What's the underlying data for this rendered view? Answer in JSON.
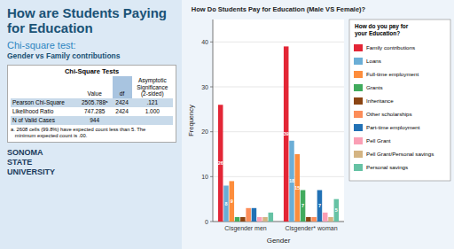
{
  "title": "How are Students Paying for Education",
  "annotations": [
    "Chi-square test:",
    "Gender vs Family contributions",
    "SONOMA\nSTATE\nUNIVERSITY"
  ],
  "chart_data": [
    {
      "type": "bar",
      "title": "How Do Students Pay for Education (Male VS Female)?",
      "xlabel": "Gender",
      "ylabel": "Frequency",
      "categories": [
        "Cisgender men",
        "Cisgender* woman"
      ],
      "series": [
        {
          "name": "Family contributions",
          "color": "#e32636",
          "values": [
            26,
            39
          ],
          "value_labels": [
            "26",
            "39"
          ]
        },
        {
          "name": "Loans",
          "color": "#6baed6",
          "values": [
            8,
            18
          ],
          "value_labels": [
            "8",
            "18"
          ]
        },
        {
          "name": "Full-time employment",
          "color": "#fd8d3c",
          "values": [
            9,
            15
          ],
          "value_labels": [
            "9",
            "15"
          ]
        },
        {
          "name": "Grants",
          "color": "#41ab5d",
          "values": [
            1,
            7
          ],
          "value_labels": [
            null,
            "7"
          ]
        },
        {
          "name": "Inheritance",
          "color": "#8b4513",
          "values": [
            1,
            1
          ],
          "value_labels": [
            null,
            null
          ]
        },
        {
          "name": "Other scholarships",
          "color": "#fc8d59",
          "values": [
            3,
            1
          ],
          "value_labels": [
            null,
            null
          ]
        },
        {
          "name": "Part-time employment",
          "color": "#2171b5",
          "values": [
            3,
            7
          ],
          "value_labels": [
            null,
            "7"
          ]
        },
        {
          "name": "Pell Grant",
          "color": "#fa9fb5",
          "values": [
            1,
            2
          ],
          "value_labels": [
            null,
            null
          ]
        },
        {
          "name": "Pell Grant/Personal savings",
          "color": "#d4b483",
          "values": [
            1,
            1
          ],
          "value_labels": [
            null,
            null
          ]
        },
        {
          "name": "Personal savings",
          "color": "#66c2a4",
          "values": [
            2,
            5
          ],
          "value_labels": [
            null,
            "5"
          ]
        }
      ],
      "ylim": [
        0,
        45
      ],
      "yticks": [
        0,
        10,
        20,
        30,
        40
      ],
      "grid": true,
      "legend": "right",
      "legend_title": "How do you pay for\nyour Education?",
      "data_labels": true
    },
    {
      "type": "table",
      "title": "Chi-Square Tests",
      "columns": [
        null,
        "Value",
        "df",
        "Asymptotic\nSignificance\n(2-sided)"
      ],
      "rows": [
        [
          "Pearson Chi-Square",
          "2505.788ᵃ",
          "2424",
          ".121"
        ],
        [
          "Likelihood Ratio",
          "747.285",
          "2424",
          "1.000"
        ],
        [
          "N of Valid Cases",
          "944",
          null,
          null
        ]
      ],
      "annotations": [
        "a. 2608 cells (99.8%) have expected count less than 5. The\n   minimum expected count is .00."
      ]
    }
  ]
}
